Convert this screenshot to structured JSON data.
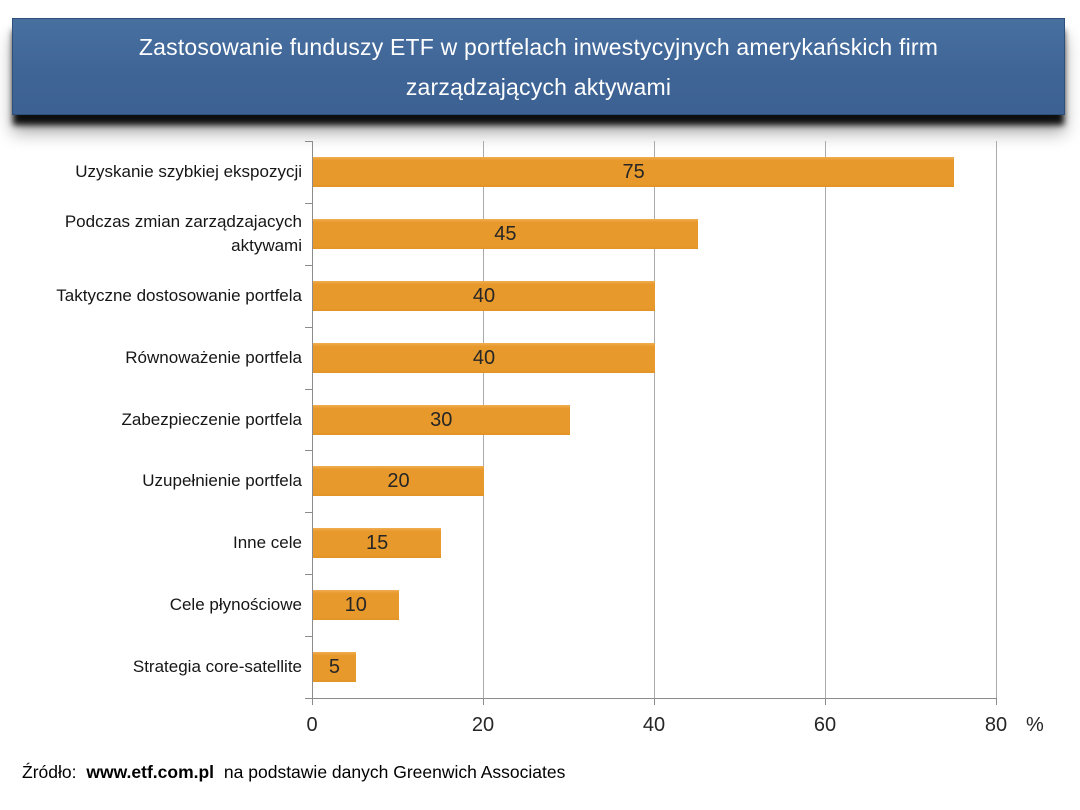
{
  "header": {
    "title": "Zastosowanie funduszy ETF w portfelach inwestycyjnych amerykańskich firm zarządzających aktywami"
  },
  "chart_data": {
    "type": "bar",
    "orientation": "horizontal",
    "title": "Zastosowanie funduszy ETF w portfelach inwestycyjnych amerykańskich firm zarządzających aktywami",
    "categories": [
      "Uzyskanie szybkiej ekspozycji",
      "Podczas zmian zarządzajacych aktywami",
      "Taktyczne dostosowanie portfela",
      "Równoważenie portfela",
      "Zabezpieczenie portfela",
      "Uzupełnienie portfela",
      "Inne cele",
      "Cele płynościowe",
      "Strategia core-satellite"
    ],
    "values": [
      75,
      45,
      40,
      40,
      30,
      20,
      15,
      10,
      5
    ],
    "x_ticks": [
      0,
      20,
      40,
      60,
      80
    ],
    "x_unit": "%",
    "xlim": [
      0,
      80
    ],
    "grid": true,
    "legend": false,
    "bar_color": "#e8992b",
    "gridline_color": "#ababab",
    "axis_color": "#8c8c8c",
    "value_label_position": "center"
  },
  "source": {
    "prefix": "Źródło:",
    "site": "www.etf.com.pl",
    "suffix": "na podstawie danych Greenwich Associates"
  },
  "colors": {
    "title_bg": "#3f6597",
    "title_text": "#ffffff"
  }
}
